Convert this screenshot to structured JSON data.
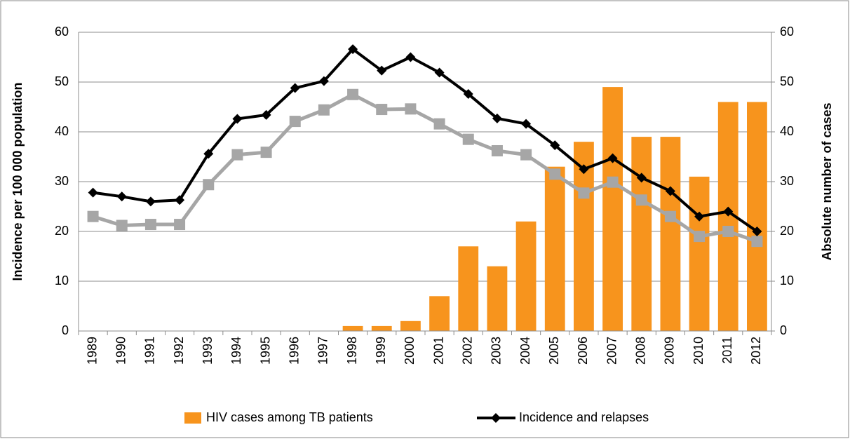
{
  "chart_data": {
    "type": "bar",
    "categories": [
      "1989",
      "1990",
      "1991",
      "1992",
      "1993",
      "1994",
      "1995",
      "1996",
      "1997",
      "1998",
      "1999",
      "2000",
      "2001",
      "2002",
      "2003",
      "2004",
      "2005",
      "2006",
      "2007",
      "2008",
      "2009",
      "2010",
      "2011",
      "2012"
    ],
    "y_label": "Incidence per 100 000 population",
    "y2_label": "Absolute number of cases",
    "ylim": [
      0,
      60
    ],
    "yticks": [
      0,
      10,
      20,
      30,
      40,
      50,
      60
    ],
    "y2lim": [
      0,
      60
    ],
    "y2ticks": [
      0,
      10,
      20,
      30,
      40,
      50,
      60
    ],
    "grid": true,
    "legend": "bottom",
    "series": [
      {
        "name": "HIV cases among TB patients",
        "type": "bar",
        "axis": "y2",
        "color": "#f7941d",
        "values": [
          0,
          0,
          0,
          0,
          0,
          0,
          0,
          0,
          0,
          1,
          1,
          2,
          7,
          17,
          13,
          22,
          33,
          38,
          49,
          39,
          39,
          31,
          46,
          46
        ]
      },
      {
        "name": "Incidence and relapses",
        "type": "line",
        "color": "#000000",
        "marker": "diamond",
        "values": [
          27.8,
          27,
          26,
          26.3,
          35.6,
          42.6,
          43.4,
          48.8,
          50.2,
          56.6,
          52.3,
          55,
          51.9,
          47.6,
          42.7,
          41.6,
          37.3,
          32.5,
          34.7,
          30.8,
          28.1,
          23,
          24,
          20
        ]
      },
      {
        "type": "line",
        "color": "#a6a6a6",
        "marker": "square",
        "values": [
          23,
          21.2,
          21.4,
          21.4,
          29.4,
          35.4,
          35.9,
          42.1,
          44.4,
          47.5,
          44.5,
          44.6,
          41.6,
          38.5,
          36.2,
          35.4,
          31.5,
          27.7,
          29.9,
          26.3,
          23,
          19,
          20,
          18
        ]
      }
    ]
  }
}
